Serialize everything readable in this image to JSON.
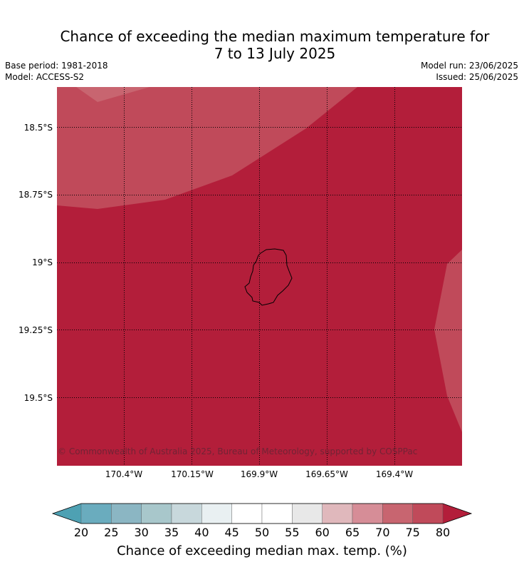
{
  "title": {
    "line1": "Chance of exceeding the median maximum temperature for",
    "line2": "7 to 13 July 2025"
  },
  "meta": {
    "base_period": "Base period: 1981-2018",
    "model": "Model: ACCESS-S2",
    "model_run": "Model run: 23/06/2025",
    "issued": "Issued: 25/06/2025"
  },
  "map": {
    "latitude_labels": [
      "18.5°S",
      "18.75°S",
      "19°S",
      "19.25°S",
      "19.5°S"
    ],
    "longitude_labels": [
      "170.4°W",
      "170.15°W",
      "169.9°W",
      "169.65°W",
      "169.4°W"
    ],
    "copyright": "© Commonwealth of Australia 2025, Bureau of Meteorology, supported by COSPPac",
    "island": "Niue",
    "regions": [
      {
        "category": "70 to 75",
        "color": "#c86570",
        "location": "northwest edge"
      },
      {
        "category": "75 to 80",
        "color": "#c04a5a",
        "location": "northwest"
      },
      {
        "category": "80+",
        "color": "#b31e3a",
        "location": "most of map"
      },
      {
        "category": "75 to 80",
        "color": "#c04a5a",
        "location": "east edge"
      }
    ]
  },
  "colorbar": {
    "title": "Chance of exceeding median max. temp. (%)",
    "ticks": [
      "20",
      "25",
      "30",
      "35",
      "40",
      "45",
      "50",
      "55",
      "60",
      "65",
      "70",
      "75",
      "80"
    ],
    "colors": [
      "#6aacbe",
      "#8bb6c3",
      "#a8c7cb",
      "#c8d8dc",
      "#e9f0f2",
      "#ffffff",
      "#ffffff",
      "#e8e8e8",
      "#e0b8bc",
      "#d68d97",
      "#c86570",
      "#c04a5a"
    ],
    "under_color": "#4ea1b3",
    "over_color": "#b31e3a"
  }
}
